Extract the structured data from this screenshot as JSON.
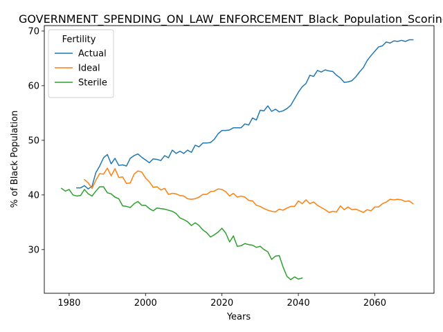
{
  "chart_data": {
    "type": "line",
    "title": "GOVERNMENT_SPENDING_ON_LAW_ENFORCEMENT_Black_Population_Scoring",
    "xlabel": "Years",
    "ylabel": "% of Black Population",
    "xlim": [
      1973.5,
      2075.5
    ],
    "ylim": [
      22,
      71
    ],
    "xticks": [
      1980,
      2000,
      2020,
      2040,
      2060
    ],
    "yticks": [
      30,
      40,
      50,
      60,
      70
    ],
    "grid": false,
    "legend": {
      "title": "Fertility",
      "position": "top-left"
    },
    "series": [
      {
        "name": "Actual",
        "color": "#1f77b4",
        "x": [
          1982,
          1983,
          1984,
          1985,
          1986,
          1987,
          1988,
          1989,
          1990,
          1991,
          1992,
          1993,
          1994,
          1995,
          1996,
          1997,
          1998,
          1999,
          2000,
          2001,
          2002,
          2003,
          2004,
          2005,
          2006,
          2007,
          2008,
          2009,
          2010,
          2011,
          2012,
          2013,
          2014,
          2015,
          2016,
          2017,
          2018,
          2019,
          2020,
          2021,
          2022,
          2023,
          2024,
          2025,
          2026,
          2027,
          2028,
          2029,
          2030,
          2031,
          2032,
          2033,
          2034,
          2035,
          2036,
          2037,
          2038,
          2039,
          2040,
          2041,
          2042,
          2043,
          2044,
          2045,
          2046,
          2047,
          2048,
          2049,
          2050,
          2051,
          2052,
          2053,
          2054,
          2055,
          2056,
          2057,
          2058,
          2059,
          2060,
          2061,
          2062,
          2063,
          2064,
          2065,
          2066,
          2067,
          2068,
          2069,
          2070
        ],
        "values": [
          41.3,
          41.3,
          41.7,
          41.1,
          41.6,
          44.1,
          45.3,
          46.8,
          47.4,
          45.7,
          46.7,
          45.4,
          45.5,
          45.3,
          46.7,
          47.2,
          47.5,
          46.9,
          46.4,
          45.9,
          46.6,
          46.5,
          46.3,
          47.2,
          46.8,
          48.2,
          47.6,
          48.0,
          47.6,
          48.2,
          47.8,
          49.1,
          48.8,
          49.5,
          49.5,
          49.6,
          50.2,
          51.2,
          51.8,
          51.8,
          51.9,
          52.3,
          52.3,
          52.3,
          53.0,
          52.8,
          54.1,
          53.7,
          55.5,
          55.4,
          56.3,
          55.3,
          55.7,
          55.2,
          55.4,
          55.8,
          56.4,
          57.6,
          58.8,
          59.8,
          60.4,
          61.9,
          61.7,
          62.8,
          62.5,
          62.9,
          62.7,
          62.6,
          61.9,
          61.4,
          60.6,
          60.7,
          60.9,
          61.6,
          62.5,
          63.3,
          64.6,
          65.5,
          66.3,
          67.1,
          67.3,
          68.0,
          67.8,
          68.2,
          68.1,
          68.3,
          68.1,
          68.4,
          68.4
        ]
      },
      {
        "name": "Ideal",
        "color": "#ff7f0e",
        "x": [
          1984,
          1985,
          1986,
          1987,
          1988,
          1989,
          1990,
          1991,
          1992,
          1993,
          1994,
          1995,
          1996,
          1997,
          1998,
          1999,
          2000,
          2001,
          2002,
          2003,
          2004,
          2005,
          2006,
          2007,
          2008,
          2009,
          2010,
          2011,
          2012,
          2013,
          2014,
          2015,
          2016,
          2017,
          2018,
          2019,
          2020,
          2021,
          2022,
          2023,
          2024,
          2025,
          2026,
          2027,
          2028,
          2029,
          2030,
          2031,
          2032,
          2033,
          2034,
          2035,
          2036,
          2037,
          2038,
          2039,
          2040,
          2041,
          2042,
          2043,
          2044,
          2045,
          2046,
          2047,
          2048,
          2049,
          2050,
          2051,
          2052,
          2053,
          2054,
          2055,
          2056,
          2057,
          2058,
          2059,
          2060,
          2061,
          2062,
          2063,
          2064,
          2065,
          2066,
          2067,
          2068,
          2069,
          2070
        ],
        "values": [
          42.8,
          42.2,
          41.2,
          42.7,
          43.9,
          43.8,
          44.9,
          43.5,
          44.8,
          43.2,
          43.3,
          42.1,
          42.2,
          43.8,
          44.4,
          44.2,
          43.1,
          42.4,
          41.4,
          41.5,
          40.9,
          41.2,
          40.1,
          40.3,
          40.2,
          39.9,
          39.8,
          39.3,
          39.2,
          39.3,
          39.6,
          40.1,
          40.1,
          40.6,
          40.7,
          41.1,
          41.0,
          40.6,
          39.8,
          40.3,
          39.6,
          39.8,
          39.6,
          39.0,
          38.9,
          38.1,
          37.9,
          37.5,
          37.2,
          37.0,
          36.9,
          37.4,
          37.2,
          37.6,
          37.9,
          37.9,
          38.9,
          38.4,
          39.1,
          38.4,
          38.7,
          38.1,
          37.7,
          37.3,
          36.8,
          37.0,
          36.9,
          38.0,
          37.3,
          37.8,
          37.3,
          37.4,
          37.1,
          36.8,
          37.3,
          37.1,
          37.8,
          37.8,
          38.4,
          38.7,
          39.2,
          39.1,
          39.2,
          39.1,
          38.8,
          38.9,
          38.4
        ]
      },
      {
        "name": "Sterile",
        "color": "#2ca02c",
        "x": [
          1978,
          1979,
          1980,
          1981,
          1982,
          1983,
          1984,
          1985,
          1986,
          1987,
          1988,
          1989,
          1990,
          1991,
          1992,
          1993,
          1994,
          1995,
          1996,
          1997,
          1998,
          1999,
          2000,
          2001,
          2002,
          2003,
          2004,
          2005,
          2006,
          2007,
          2008,
          2009,
          2010,
          2011,
          2012,
          2013,
          2014,
          2015,
          2016,
          2017,
          2018,
          2019,
          2020,
          2021,
          2022,
          2023,
          2024,
          2025,
          2026,
          2027,
          2028,
          2029,
          2030,
          2031,
          2032,
          2033,
          2034,
          2035,
          2036,
          2037,
          2038,
          2039,
          2040,
          2041
        ],
        "values": [
          41.2,
          40.7,
          41.0,
          40.0,
          39.8,
          39.9,
          41.0,
          40.2,
          39.8,
          40.7,
          41.5,
          41.5,
          40.4,
          40.2,
          39.6,
          39.3,
          38.0,
          37.9,
          37.7,
          38.4,
          38.8,
          38.1,
          38.1,
          37.5,
          37.1,
          37.6,
          37.5,
          37.4,
          37.2,
          37.0,
          36.6,
          35.8,
          35.5,
          35.1,
          34.4,
          34.9,
          34.4,
          33.6,
          33.1,
          32.3,
          32.7,
          33.2,
          33.9,
          33.0,
          31.4,
          32.5,
          30.6,
          30.7,
          31.1,
          30.9,
          30.8,
          30.4,
          30.6,
          30.0,
          29.6,
          28.2,
          28.8,
          28.9,
          26.8,
          25.1,
          24.5,
          25.0,
          24.6,
          24.8
        ]
      }
    ]
  }
}
